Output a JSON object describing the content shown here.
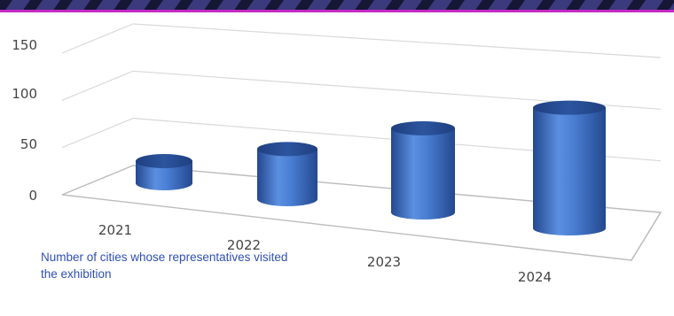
{
  "chart_data": {
    "type": "bar",
    "style": "3d-cylinder",
    "categories": [
      "2021",
      "2022",
      "2023",
      "2024"
    ],
    "values": [
      26,
      59,
      99,
      142
    ],
    "ylim": [
      0,
      150
    ],
    "yticks": [
      "0",
      "50",
      "100",
      "150"
    ],
    "grid": true,
    "legend": "none"
  },
  "caption": "Number of cities whose representatives visited the exhibition",
  "colors": {
    "bar": "#4a7fd4",
    "bar_dark": "#24488f",
    "grid": "#d9d9d9",
    "caption": "#2f4fb4",
    "border_dark": "#1a1c3c",
    "border_accent": "#c62ac4"
  }
}
